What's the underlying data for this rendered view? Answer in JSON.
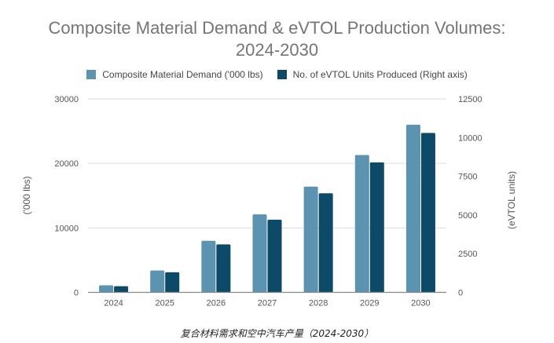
{
  "chart_data": {
    "type": "bar",
    "title": "Composite Material Demand & eVTOL Production Volumes: 2024-2030",
    "title_lines": [
      "Composite Material Demand & eVTOL Production Volumes:",
      "2024-2030"
    ],
    "categories": [
      "2024",
      "2025",
      "2026",
      "2027",
      "2028",
      "2029",
      "2030"
    ],
    "series": [
      {
        "name": "Composite Material Demand ('000 lbs)",
        "axis": "left",
        "color": "#5b93b0",
        "values": [
          1100,
          3400,
          8000,
          12100,
          16400,
          21300,
          26000
        ]
      },
      {
        "name": "No. of eVTOL Units Produced (Right axis)",
        "axis": "right",
        "color": "#0d4a68",
        "values": [
          400,
          1300,
          3100,
          4700,
          6400,
          8400,
          10300
        ]
      }
    ],
    "xlabel": "",
    "ylabel": "('000 lbs)",
    "y2label": "(eVTOL units)",
    "ylim": [
      0,
      30000
    ],
    "y2lim": [
      0,
      12500
    ],
    "yticks": [
      "0",
      "10000",
      "20000",
      "30000"
    ],
    "y2ticks": [
      "0",
      "2500",
      "5000",
      "7500",
      "10000",
      "12500"
    ],
    "grid": true,
    "legend_position": "top"
  },
  "caption": "复合材料需求和空中汽车产量（2024-2030）"
}
